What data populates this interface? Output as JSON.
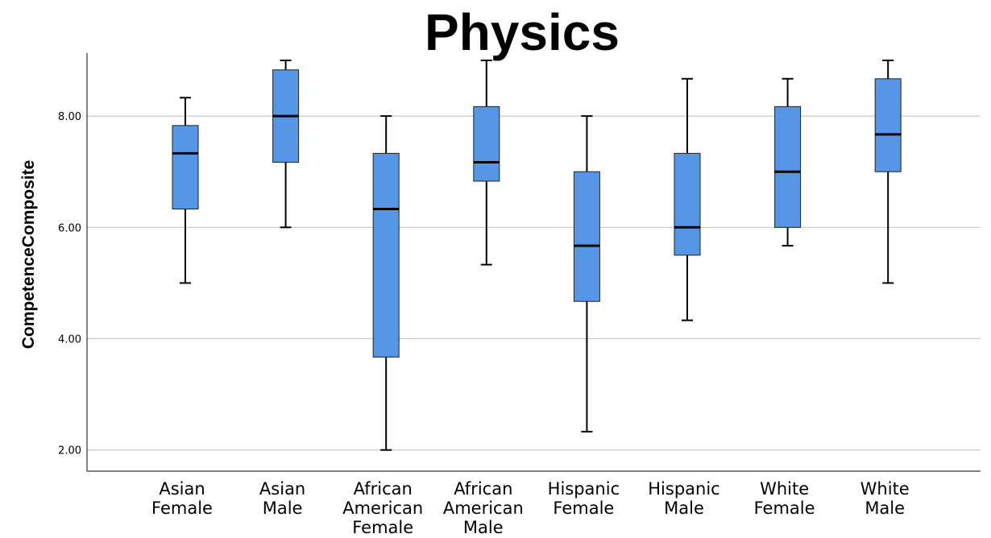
{
  "chart_data": {
    "type": "boxplot",
    "title": "Physics",
    "ylabel": "CompetenceComposite",
    "xlabel": "",
    "ylim": [
      1.62,
      9.13
    ],
    "yticks": [
      "2.00",
      "4.00",
      "6.00",
      "8.00"
    ],
    "ytick_values": [
      2,
      4,
      6,
      8
    ],
    "grid": true,
    "box_color": "#5596e6",
    "categories": [
      [
        "Asian",
        "Female"
      ],
      [
        "Asian",
        "Male"
      ],
      [
        "African",
        "American",
        "Female"
      ],
      [
        "African",
        "American",
        "Male"
      ],
      [
        "Hispanic",
        "Female"
      ],
      [
        "Hispanic",
        "Male"
      ],
      [
        "White",
        "Female"
      ],
      [
        "White",
        "Male"
      ]
    ],
    "boxes": [
      {
        "min": 5.0,
        "q1": 6.33,
        "median": 7.33,
        "q3": 7.83,
        "max": 8.33
      },
      {
        "min": 6.0,
        "q1": 7.17,
        "median": 8.0,
        "q3": 8.83,
        "max": 9.0
      },
      {
        "min": 2.0,
        "q1": 3.67,
        "median": 6.33,
        "q3": 7.33,
        "max": 8.0
      },
      {
        "min": 5.33,
        "q1": 6.83,
        "median": 7.17,
        "q3": 8.17,
        "max": 9.0
      },
      {
        "min": 2.33,
        "q1": 4.67,
        "median": 5.67,
        "q3": 7.0,
        "max": 8.0
      },
      {
        "min": 4.33,
        "q1": 5.5,
        "median": 6.0,
        "q3": 7.33,
        "max": 8.67
      },
      {
        "min": 5.67,
        "q1": 6.0,
        "median": 7.0,
        "q3": 8.17,
        "max": 8.67
      },
      {
        "min": 5.0,
        "q1": 7.0,
        "median": 7.67,
        "q3": 8.67,
        "max": 9.0
      }
    ]
  }
}
